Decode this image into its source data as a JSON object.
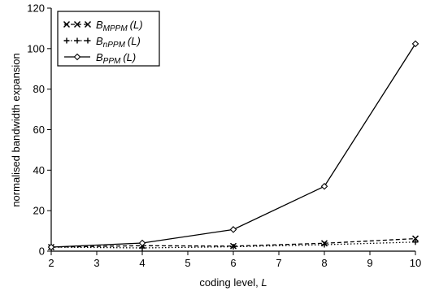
{
  "chart_data": {
    "type": "line",
    "xlabel": "coding level,",
    "xlabel_var": "L",
    "ylabel": "normalised bandwidth expansion",
    "xlim": [
      2,
      10
    ],
    "ylim": [
      0,
      120
    ],
    "x_ticks": [
      2,
      3,
      4,
      5,
      6,
      7,
      8,
      9,
      10
    ],
    "y_ticks": [
      0,
      20,
      40,
      60,
      80,
      100,
      120
    ],
    "grid": false,
    "legend_position": "top-left",
    "series": [
      {
        "name": "B_MPPM(L)",
        "label_main": "B",
        "label_sub": "MPPM",
        "label_arg": "(L)",
        "marker": "x",
        "dash": "dashed",
        "x": [
          2,
          4,
          6,
          8,
          10
        ],
        "y": [
          2,
          2.7,
          2.5,
          3.9,
          6.2
        ]
      },
      {
        "name": "B_nPPM(L)",
        "label_main": "B",
        "label_sub": "nPPM",
        "label_arg": "(L)",
        "marker": "plus",
        "dash": "dotted",
        "x": [
          2,
          4,
          6,
          8,
          10
        ],
        "y": [
          2,
          1.6,
          2.2,
          3.2,
          4.5
        ]
      },
      {
        "name": "B_PPM(L)",
        "label_main": "B",
        "label_sub": "PPM",
        "label_arg": "(L)",
        "marker": "diamond",
        "dash": "solid",
        "x": [
          2,
          4,
          6,
          8,
          10
        ],
        "y": [
          2,
          4,
          10.7,
          32,
          102.4
        ]
      }
    ]
  }
}
